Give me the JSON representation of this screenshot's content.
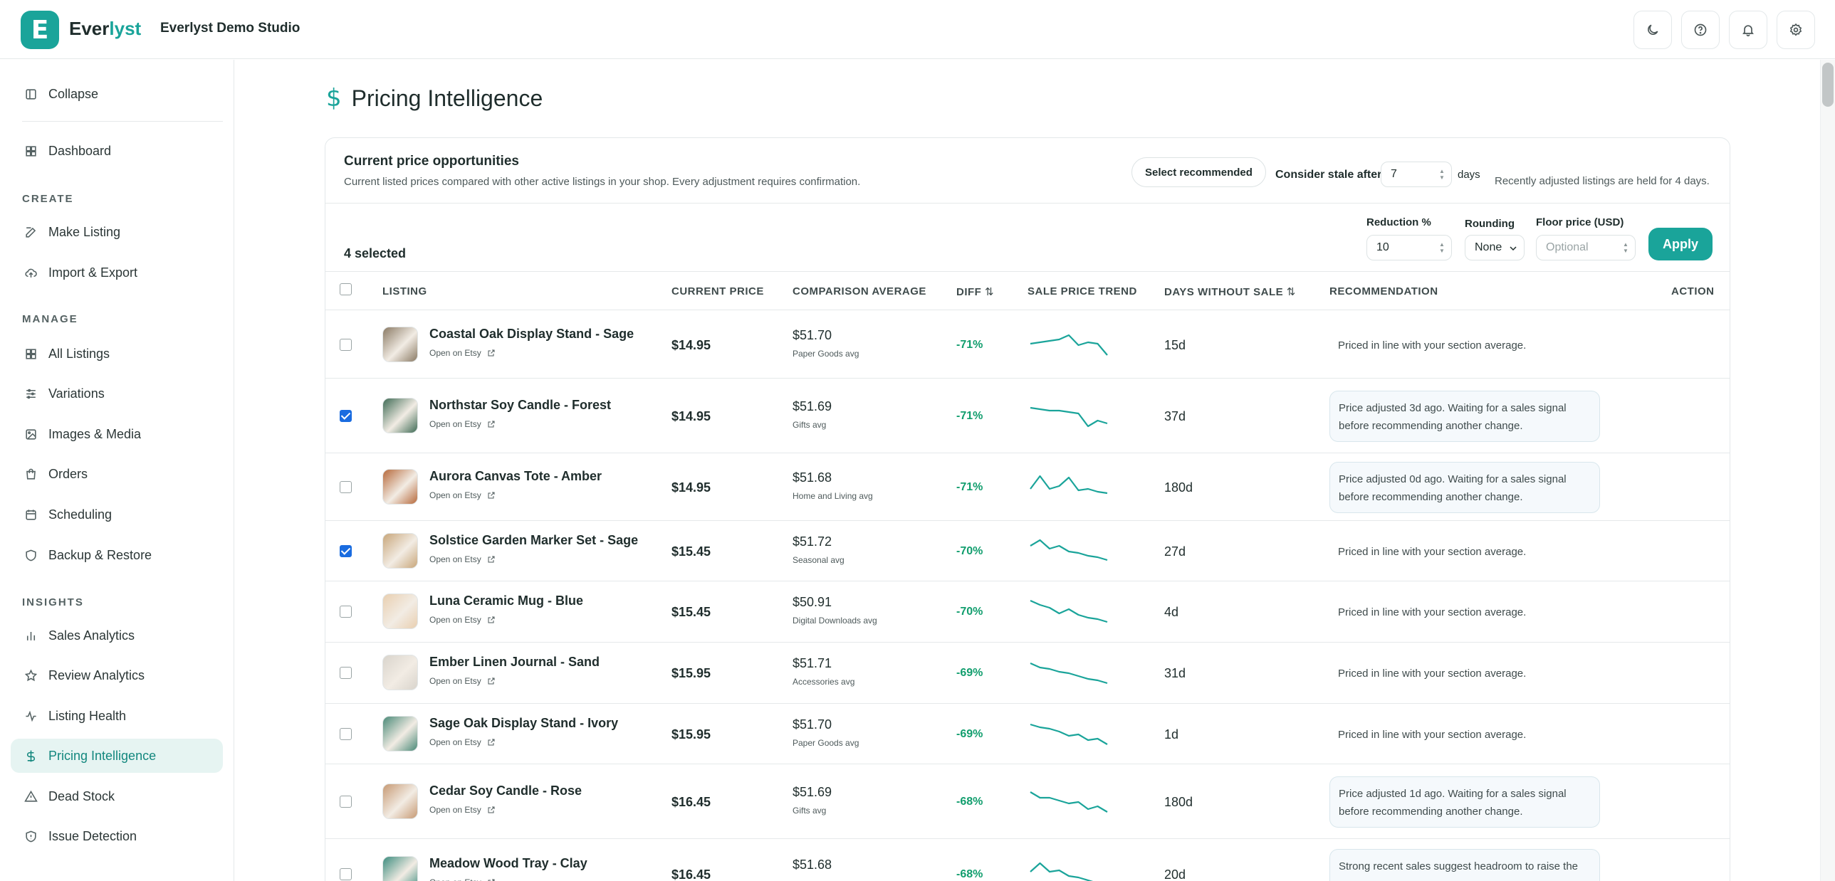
{
  "brand": {
    "logo_letter": "E",
    "name_part1": "Ever",
    "name_part2": "lyst",
    "accent_color": "#1aa49a"
  },
  "shop_name": "Everlyst Demo Studio",
  "header_icons": [
    "moon-icon",
    "help-icon",
    "bell-icon",
    "gear-icon"
  ],
  "sidebar": {
    "collapse_label": "Collapse",
    "dashboard_label": "Dashboard",
    "section_create": "CREATE",
    "make_listing": "Make Listing",
    "import_export": "Import & Export",
    "section_manage": "MANAGE",
    "all_listings": "All Listings",
    "variations": "Variations",
    "images_media": "Images & Media",
    "orders": "Orders",
    "scheduling": "Scheduling",
    "backup_restore": "Backup & Restore",
    "section_insights": "INSIGHTS",
    "sales_analytics": "Sales Analytics",
    "review_analytics": "Review Analytics",
    "listing_health": "Listing Health",
    "pricing_intelligence": "Pricing Intelligence",
    "dead_stock": "Dead Stock",
    "issue_detection": "Issue Detection"
  },
  "page": {
    "icon": "$",
    "title": "Pricing Intelligence"
  },
  "opportunities": {
    "title": "Current price opportunities",
    "subtitle": "Current listed prices compared with other active listings in your shop. Every adjustment requires confirmation.",
    "select_recommended": "Select recommended",
    "stale_label": "Consider stale after",
    "stale_value": "7",
    "days_label": "days",
    "held_note": "Recently adjusted listings are held for 4 days."
  },
  "toolbar": {
    "selected_count": "4 selected",
    "reduction_label": "Reduction %",
    "reduction_value": "10",
    "rounding_label": "Rounding",
    "rounding_value": "None",
    "floor_label": "Floor price (USD)",
    "floor_placeholder": "Optional",
    "apply_label": "Apply"
  },
  "table": {
    "headers": {
      "listing": "LISTING",
      "current_price": "CURRENT PRICE",
      "comparison_average": "COMPARISON AVERAGE",
      "diff": "DIFF",
      "sale_price_trend": "SALE PRICE TREND",
      "days_without_sale": "DAYS WITHOUT SALE",
      "recommendation": "RECOMMENDATION",
      "action": "ACTION"
    },
    "open_on_etsy": "Open on Etsy",
    "rows": [
      {
        "checked": false,
        "name": "Coastal Oak Display Stand - Sage",
        "price": "$14.95",
        "comp": "$51.70",
        "comp_sub": "Paper Goods avg",
        "diff": "-71%",
        "days": "15d",
        "rec": "Priced in line with your section average.",
        "rec_boxed": false,
        "trend": [
          0.45,
          0.4,
          0.35,
          0.3,
          0.15,
          0.5,
          0.4,
          0.45,
          0.85
        ],
        "thumb": "#8a7a64"
      },
      {
        "checked": true,
        "name": "Northstar Soy Candle - Forest",
        "price": "$14.95",
        "comp": "$51.69",
        "comp_sub": "Gifts avg",
        "diff": "-71%",
        "days": "37d",
        "rec": "Price adjusted 3d ago. Waiting for a sales signal before recommending another change.",
        "rec_boxed": true,
        "trend": [
          0.2,
          0.25,
          0.3,
          0.3,
          0.35,
          0.4,
          0.85,
          0.65,
          0.75
        ],
        "thumb": "#3f6b55"
      },
      {
        "checked": false,
        "name": "Aurora Canvas Tote - Amber",
        "price": "$14.95",
        "comp": "$51.68",
        "comp_sub": "Home and Living avg",
        "diff": "-71%",
        "days": "180d",
        "rec": "Price adjusted 0d ago. Waiting for a sales signal before recommending another change.",
        "rec_boxed": true,
        "trend": [
          0.55,
          0.1,
          0.55,
          0.45,
          0.15,
          0.6,
          0.55,
          0.65,
          0.7
        ],
        "thumb": "#b76a3c"
      },
      {
        "checked": true,
        "name": "Solstice Garden Marker Set - Sage",
        "price": "$15.45",
        "comp": "$51.72",
        "comp_sub": "Seasonal avg",
        "diff": "-70%",
        "days": "27d",
        "rec": "Priced in line with your section average.",
        "rec_boxed": false,
        "trend": [
          0.3,
          0.1,
          0.4,
          0.3,
          0.5,
          0.55,
          0.65,
          0.7,
          0.8
        ],
        "thumb": "#c8a67a"
      },
      {
        "checked": false,
        "name": "Luna Ceramic Mug - Blue",
        "price": "$15.45",
        "comp": "$50.91",
        "comp_sub": "Digital Downloads avg",
        "diff": "-70%",
        "days": "4d",
        "rec": "Priced in line with your section average.",
        "rec_boxed": false,
        "trend": [
          0.1,
          0.25,
          0.35,
          0.55,
          0.4,
          0.6,
          0.7,
          0.75,
          0.85
        ],
        "thumb": "#e9cfb0"
      },
      {
        "checked": false,
        "name": "Ember Linen Journal - Sand",
        "price": "$15.95",
        "comp": "$51.71",
        "comp_sub": "Accessories avg",
        "diff": "-69%",
        "days": "31d",
        "rec": "Priced in line with your section average.",
        "rec_boxed": false,
        "trend": [
          0.15,
          0.3,
          0.35,
          0.45,
          0.5,
          0.6,
          0.7,
          0.75,
          0.85
        ],
        "thumb": "#d9d4cc"
      },
      {
        "checked": false,
        "name": "Sage Oak Display Stand - Ivory",
        "price": "$15.95",
        "comp": "$51.70",
        "comp_sub": "Paper Goods avg",
        "diff": "-69%",
        "days": "1d",
        "rec": "Priced in line with your section average.",
        "rec_boxed": false,
        "trend": [
          0.15,
          0.25,
          0.3,
          0.4,
          0.55,
          0.5,
          0.7,
          0.65,
          0.85
        ],
        "thumb": "#4a8a78"
      },
      {
        "checked": false,
        "name": "Cedar Soy Candle - Rose",
        "price": "$16.45",
        "comp": "$51.69",
        "comp_sub": "Gifts avg",
        "diff": "-68%",
        "days": "180d",
        "rec": "Price adjusted 1d ago. Waiting for a sales signal before recommending another change.",
        "rec_boxed": true,
        "trend": [
          0.15,
          0.35,
          0.35,
          0.45,
          0.55,
          0.5,
          0.75,
          0.65,
          0.85
        ],
        "thumb": "#c79a74"
      },
      {
        "checked": false,
        "name": "Meadow Wood Tray - Clay",
        "price": "$16.45",
        "comp": "$51.68",
        "comp_sub": "",
        "diff": "-68%",
        "days": "20d",
        "rec": "Strong recent sales suggest headroom to raise the",
        "rec_boxed": true,
        "trend": [
          0.4,
          0.1,
          0.4,
          0.35,
          0.55,
          0.6,
          0.7,
          0.8,
          0.85
        ],
        "thumb": "#3d8d7f"
      }
    ]
  }
}
